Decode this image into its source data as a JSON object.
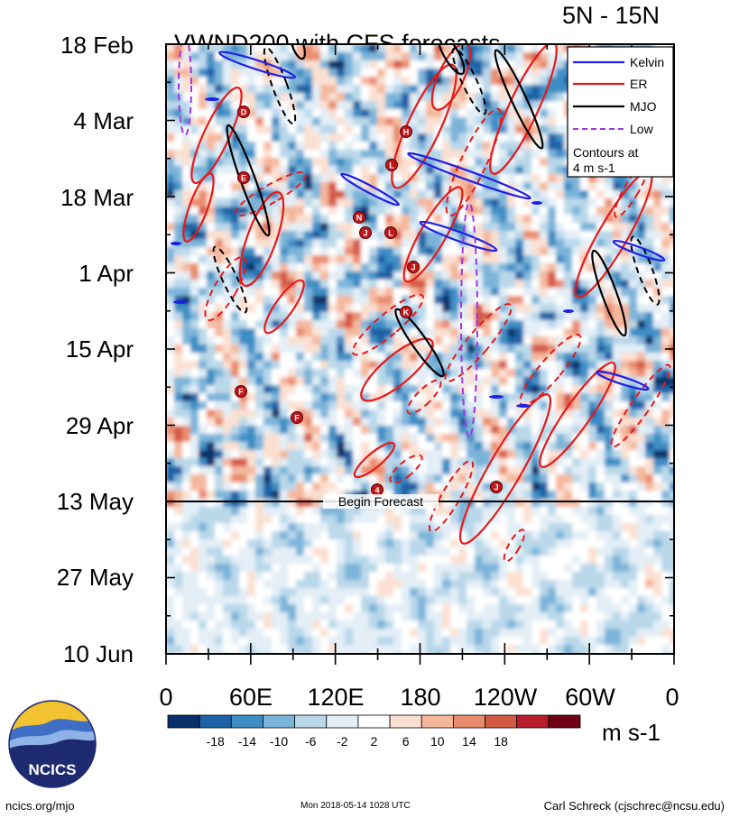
{
  "header": {
    "title": "VWND200 with CFS forecasts",
    "region": "5N - 15N"
  },
  "chart_data": {
    "type": "heatmap",
    "variable": "VWND200",
    "y_axis": {
      "ticks": [
        "18 Feb",
        "4 Mar",
        "18 Mar",
        "1 Apr",
        "15 Apr",
        "29 Apr",
        "13 May",
        "27 May",
        "10 Jun"
      ]
    },
    "x_axis": {
      "ticks": [
        "0",
        "60E",
        "120E",
        "180",
        "120W",
        "60W",
        "0"
      ],
      "range_deg_east": [
        0,
        360
      ]
    },
    "forecast_marker": {
      "label": "Begin Forecast",
      "date": "13 May"
    },
    "legend": {
      "placement": "top-right",
      "entries": [
        {
          "name": "Kelvin",
          "color": "#1f1fe6"
        },
        {
          "name": "ER",
          "color": "#e61a1a"
        },
        {
          "name": "MJO",
          "color": "#000000"
        },
        {
          "name": "Low",
          "color": "#a035e0"
        }
      ],
      "note_line1": "Contours at",
      "note_line2": "4 m s-1"
    },
    "colorbar": {
      "labels": [
        "-18",
        "-14",
        "-10",
        "-6",
        "-2",
        "2",
        "6",
        "10",
        "14",
        "18"
      ],
      "colors": [
        "#08306b",
        "#1d62a6",
        "#3e8ec5",
        "#7bb4d9",
        "#b9d8ea",
        "#e3eef6",
        "#ffffff",
        "#fbe0d2",
        "#f5b79c",
        "#e98b6d",
        "#d55a46",
        "#b81d2b",
        "#6f0014"
      ],
      "unit": "m s-1"
    },
    "storms": [
      "D",
      "E",
      "H",
      "L",
      "N",
      "J",
      "L",
      "J",
      "K",
      "F",
      "F",
      "4",
      "J"
    ]
  },
  "logo": {
    "text": "NCICS"
  },
  "footer": {
    "left": "ncics.org/mjo",
    "center": "Mon 2018-05-14 1028 UTC",
    "right": "Carl Schreck (cjschrec@ncsu.edu)"
  }
}
